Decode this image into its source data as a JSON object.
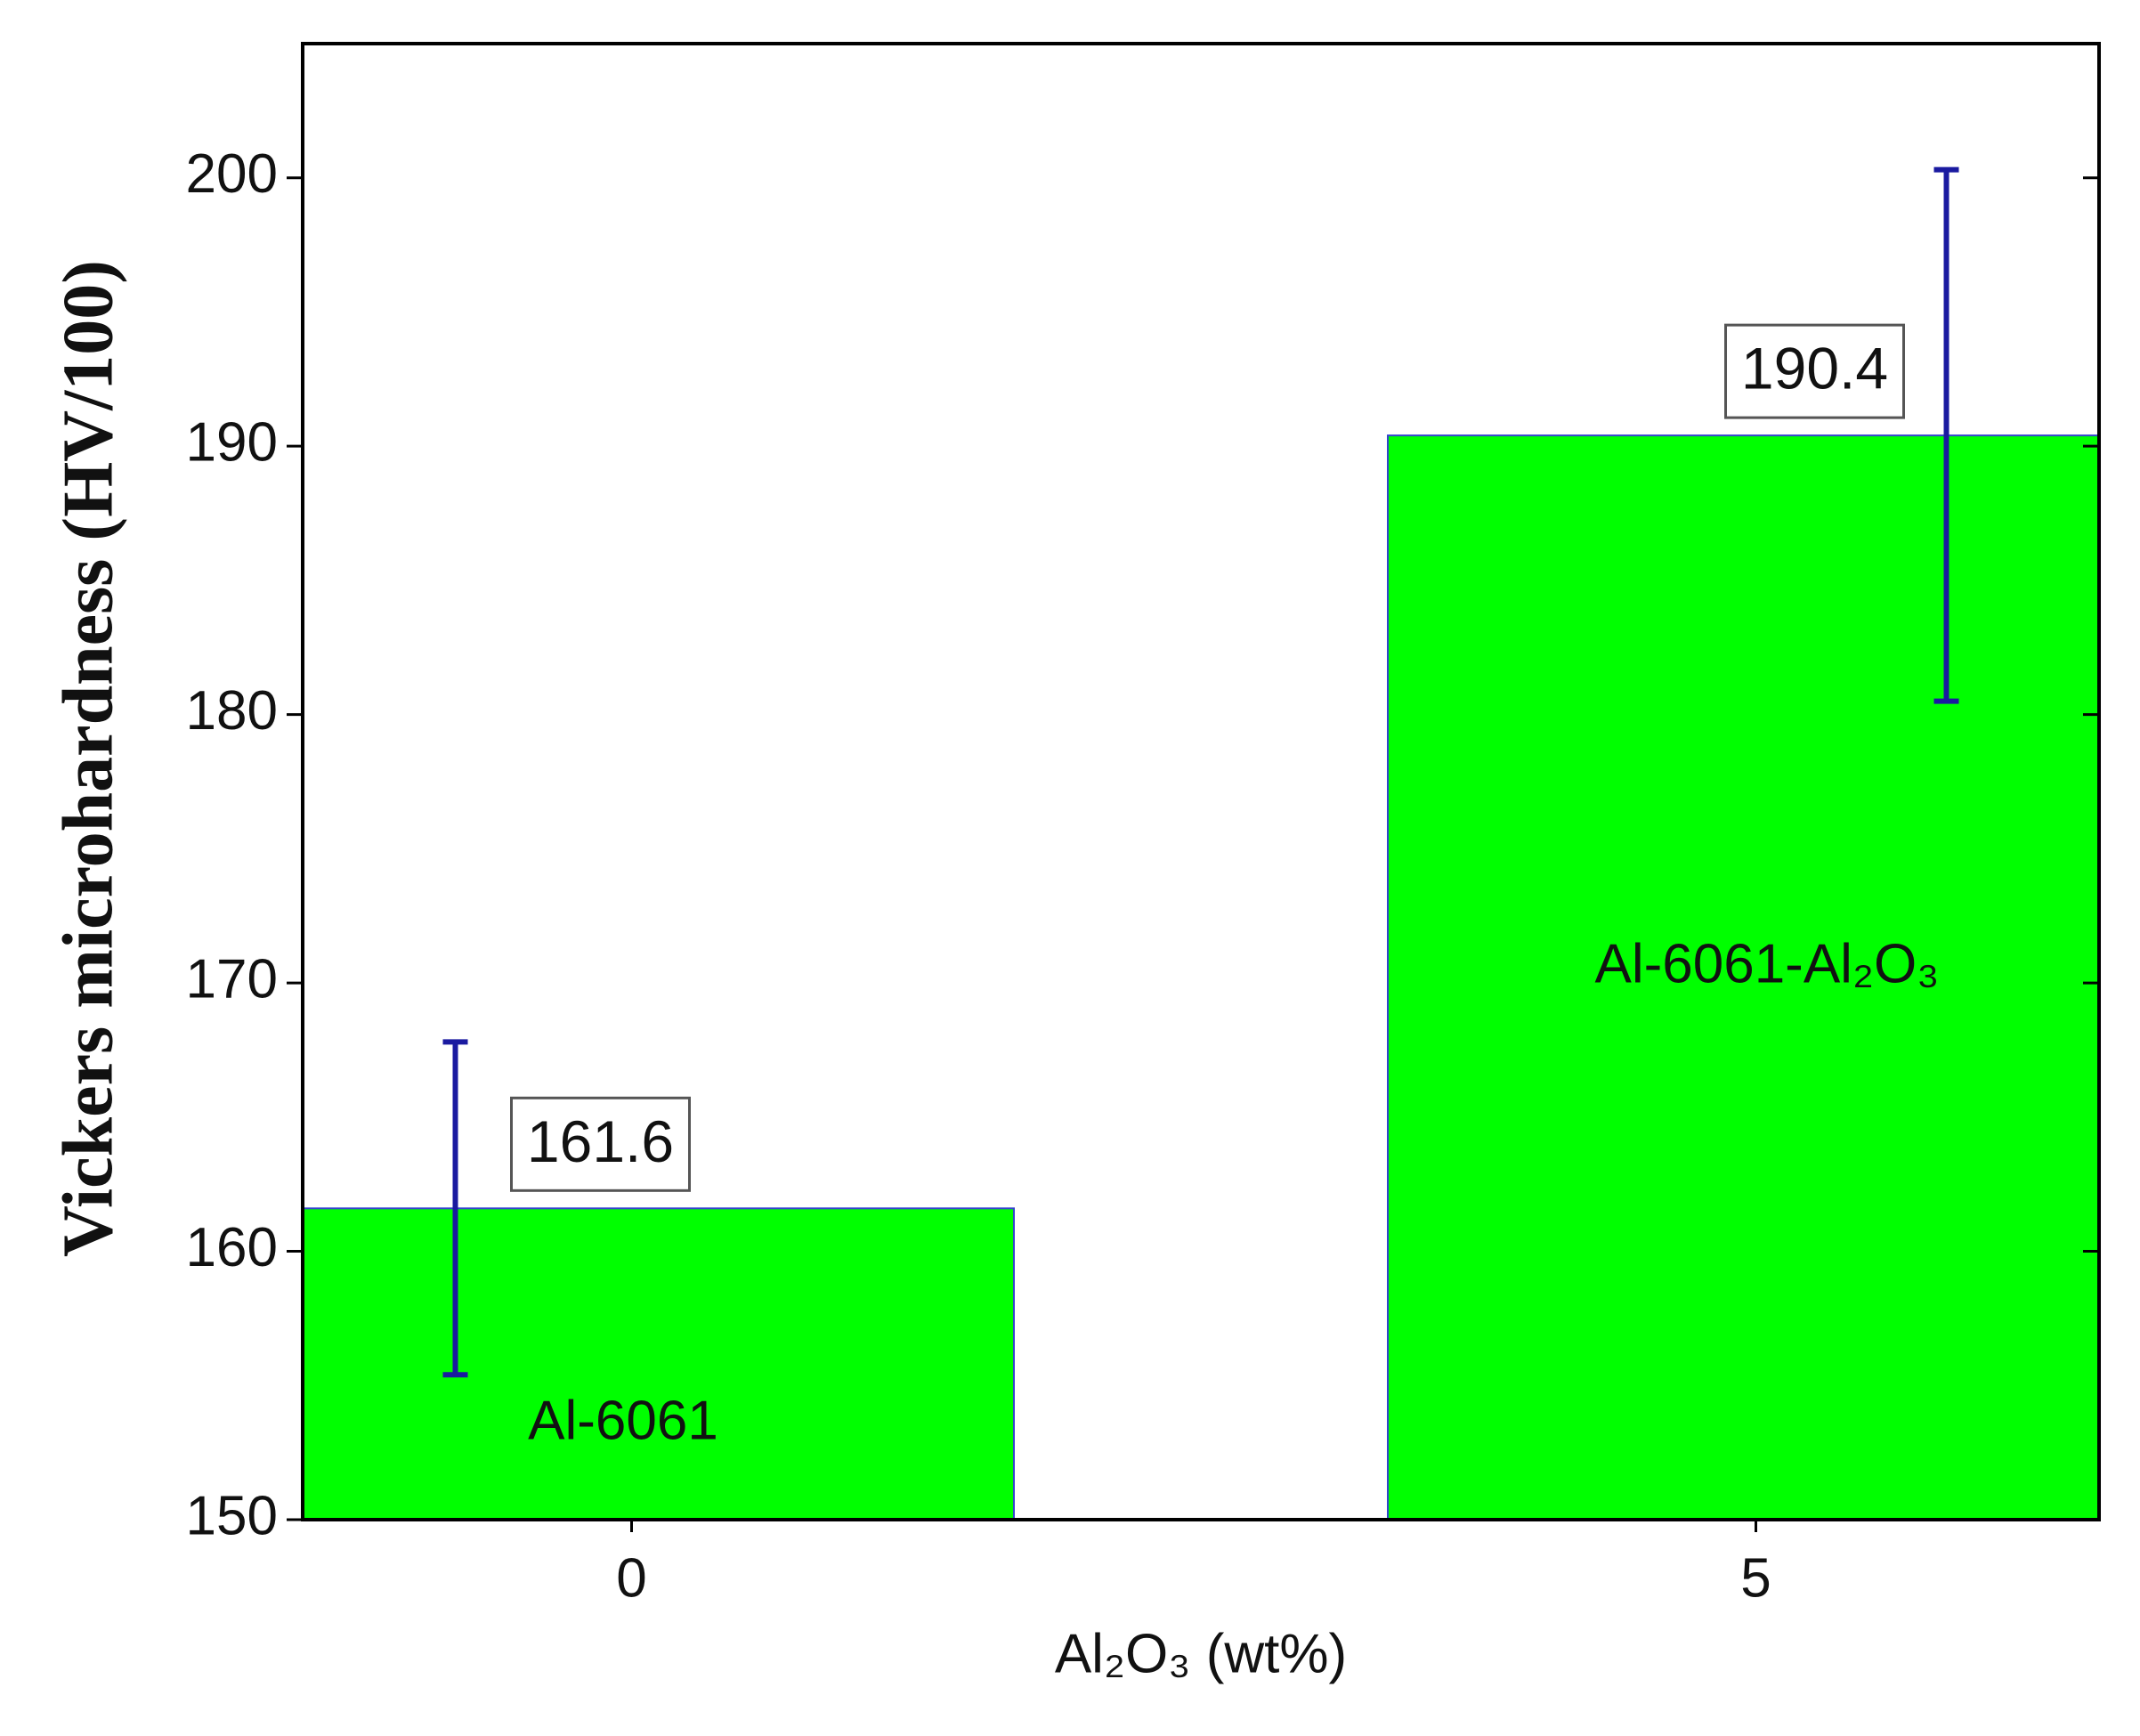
{
  "chart_data": {
    "type": "bar",
    "y_label": "Vickers microhardness (HV/100)",
    "x_label": "Al₂O₃ (wt%)",
    "categories": [
      "0",
      "5"
    ],
    "values": [
      161.6,
      190.4
    ],
    "errors": [
      6.2,
      9.9
    ],
    "bar_labels": [
      "Al-6061",
      "Al-6061-Al₂O₃"
    ],
    "color": "#00ff00",
    "error_color": "#1a1aa0",
    "ylim": [
      150,
      205
    ],
    "yticks": [
      150,
      160,
      170,
      180,
      190,
      200
    ]
  }
}
